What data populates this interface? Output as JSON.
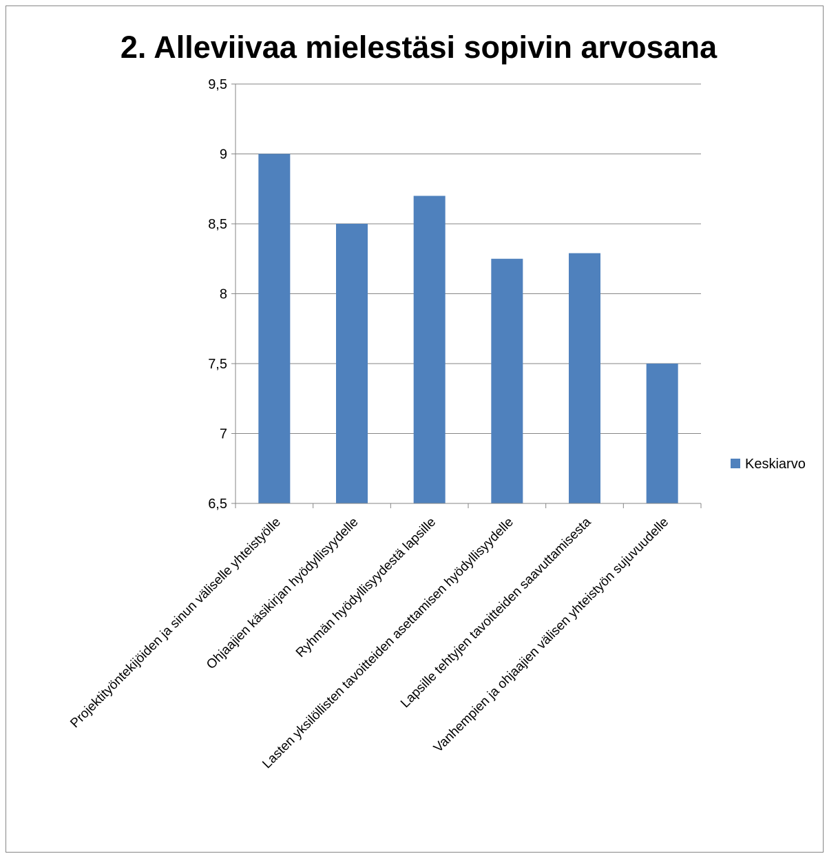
{
  "chart_data": {
    "type": "bar",
    "title": "2. Alleviivaa mielestäsi sopivin arvosana",
    "categories": [
      "Projektityöntekijöiden ja sinun väliselle yhteistyölle",
      "Ohjaajien käsikirjan hyödyllisyydelle",
      "Ryhmän hyödyllisyydestä lapsille",
      "Lasten yksilöllisten tavoitteiden asettamisen hyödyllisyydelle",
      "Lapsille tehtyjen tavoitteiden saavuttamisesta",
      "Vanhempien ja ohjaajien välisen yhteistyön sujuvuudelle"
    ],
    "series": [
      {
        "name": "Keskiarvo",
        "values": [
          9.0,
          8.5,
          8.7,
          8.25,
          8.29,
          7.5
        ],
        "color": "#4F81BD"
      }
    ],
    "ylim": [
      6.5,
      9.5
    ],
    "yticks": [
      6.5,
      7,
      7.5,
      8,
      8.5,
      9,
      9.5
    ],
    "ytick_labels": [
      "6,5",
      "7",
      "7,5",
      "8",
      "8,5",
      "9",
      "9,5"
    ],
    "xlabel": "",
    "ylabel": "",
    "grid": true,
    "legend": "right"
  }
}
